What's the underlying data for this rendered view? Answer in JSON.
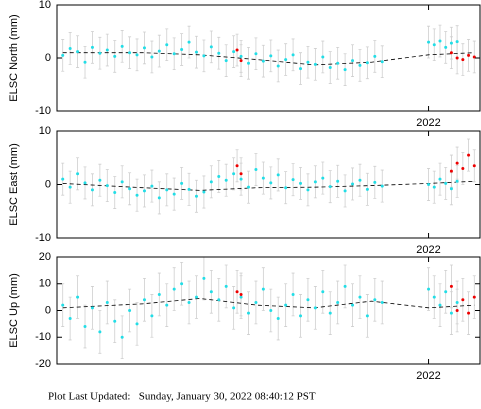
{
  "chart_data": [
    {
      "type": "scatter",
      "ylabel": "ELSC North (mm)",
      "ylim": [
        -10,
        10
      ],
      "yticks": [
        -10,
        0,
        10
      ],
      "xlim": [
        2021.35,
        2022.09
      ],
      "xticks": [
        2022
      ],
      "series": [
        {
          "color": "#22dde6",
          "error": 3,
          "x": [
            2021.36,
            2021.373,
            2021.386,
            2021.399,
            2021.412,
            2021.425,
            2021.438,
            2021.451,
            2021.464,
            2021.477,
            2021.49,
            2021.503,
            2021.516,
            2021.529,
            2021.542,
            2021.555,
            2021.568,
            2021.581,
            2021.594,
            2021.607,
            2021.62,
            2021.633,
            2021.646,
            2021.659,
            2021.672,
            2021.685,
            2021.698,
            2021.711,
            2021.724,
            2021.737,
            2021.75,
            2021.763,
            2021.776,
            2021.789,
            2021.802,
            2021.815,
            2021.828,
            2021.841,
            2021.854,
            2021.867,
            2021.88,
            2021.893,
            2021.906,
            2021.919
          ],
          "values": [
            0.5,
            1.8,
            1.2,
            -0.8,
            2.0,
            0.9,
            1.5,
            0.3,
            2.2,
            1.0,
            0.6,
            1.9,
            0.2,
            1.3,
            2.5,
            0.8,
            1.6,
            3.0,
            1.1,
            0.4,
            2.1,
            0.9,
            -0.5,
            1.2,
            0.3,
            -1.0,
            0.8,
            -0.6,
            0.4,
            -1.5,
            -0.3,
            0.6,
            -2.0,
            -0.8,
            -1.2,
            0.2,
            -1.8,
            -1.0,
            -2.2,
            -0.5,
            -1.4,
            -0.9,
            0.3,
            -0.7
          ]
        },
        {
          "color": "#22dde6",
          "error": 3,
          "x": [
            2022.0,
            2022.01,
            2022.02,
            2022.03,
            2022.04,
            2022.05
          ],
          "values": [
            3.0,
            2.5,
            3.2,
            2.0,
            2.8,
            3.1
          ]
        },
        {
          "color": "#ee0000",
          "error": 3,
          "x": [
            2021.665,
            2021.672
          ],
          "values": [
            1.5,
            -0.5
          ]
        },
        {
          "color": "#ee0000",
          "error": 3,
          "x": [
            2022.04,
            2022.05,
            2022.06,
            2022.07,
            2022.08
          ],
          "values": [
            1.0,
            0.0,
            -0.3,
            0.5,
            0.2
          ]
        },
        {
          "color": "#000000",
          "style": "dashed",
          "x": [
            2021.36,
            2021.5,
            2021.6,
            2021.7,
            2021.8,
            2021.9,
            2022.0,
            2022.08
          ],
          "values": [
            1.0,
            1.0,
            0.6,
            -0.3,
            -1.3,
            -0.8,
            0.6,
            1.0
          ]
        }
      ]
    },
    {
      "type": "scatter",
      "ylabel": "ELSC East (mm)",
      "ylim": [
        -10,
        10
      ],
      "yticks": [
        -10,
        0,
        10
      ],
      "xlim": [
        2021.35,
        2022.09
      ],
      "xticks": [
        2022
      ],
      "series": [
        {
          "color": "#22dde6",
          "error": 3,
          "x": [
            2021.36,
            2021.373,
            2021.386,
            2021.399,
            2021.412,
            2021.425,
            2021.438,
            2021.451,
            2021.464,
            2021.477,
            2021.49,
            2021.503,
            2021.516,
            2021.529,
            2021.542,
            2021.555,
            2021.568,
            2021.581,
            2021.594,
            2021.607,
            2021.62,
            2021.633,
            2021.646,
            2021.659,
            2021.672,
            2021.685,
            2021.698,
            2021.711,
            2021.724,
            2021.737,
            2021.75,
            2021.763,
            2021.776,
            2021.789,
            2021.802,
            2021.815,
            2021.828,
            2021.841,
            2021.854,
            2021.867,
            2021.88,
            2021.893,
            2021.906,
            2021.919
          ],
          "values": [
            1.0,
            -0.5,
            2.0,
            0.3,
            -1.0,
            0.8,
            -0.2,
            -1.5,
            0.5,
            -0.8,
            -2.0,
            -1.2,
            -0.3,
            -2.5,
            -1.0,
            -1.8,
            0.2,
            -0.9,
            -2.2,
            -1.4,
            0.5,
            1.5,
            0.8,
            2.0,
            1.0,
            -0.5,
            2.8,
            1.2,
            0.3,
            1.8,
            -0.6,
            0.9,
            0.2,
            -1.0,
            0.5,
            1.2,
            -0.4,
            0.6,
            -1.2,
            0.1,
            0.8,
            -0.9,
            0.4,
            -0.3
          ]
        },
        {
          "color": "#22dde6",
          "error": 3,
          "x": [
            2022.0,
            2022.01,
            2022.02,
            2022.03,
            2022.04,
            2022.05
          ],
          "values": [
            0.0,
            -0.5,
            1.0,
            0.2,
            -0.8,
            0.6
          ]
        },
        {
          "color": "#ee0000",
          "error": 3,
          "x": [
            2021.665,
            2021.672
          ],
          "values": [
            3.5,
            2.0
          ]
        },
        {
          "color": "#ee0000",
          "error": 3,
          "x": [
            2022.04,
            2022.05,
            2022.06,
            2022.07,
            2022.08
          ],
          "values": [
            2.5,
            4.0,
            3.0,
            5.5,
            3.5
          ]
        },
        {
          "color": "#000000",
          "style": "dashed",
          "x": [
            2021.36,
            2021.5,
            2021.6,
            2021.7,
            2021.8,
            2021.9,
            2022.0,
            2022.08
          ],
          "values": [
            0.2,
            -0.6,
            -1.1,
            -0.6,
            -0.5,
            -0.2,
            0.2,
            0.6
          ]
        }
      ]
    },
    {
      "type": "scatter",
      "ylabel": "ELSC Up (mm)",
      "ylim": [
        -20,
        20
      ],
      "yticks": [
        -20,
        -10,
        0,
        10,
        20
      ],
      "xlim": [
        2021.35,
        2022.09
      ],
      "xticks": [
        2022
      ],
      "series": [
        {
          "color": "#22dde6",
          "error": 8,
          "x": [
            2021.36,
            2021.373,
            2021.386,
            2021.399,
            2021.412,
            2021.425,
            2021.438,
            2021.451,
            2021.464,
            2021.477,
            2021.49,
            2021.503,
            2021.516,
            2021.529,
            2021.542,
            2021.555,
            2021.568,
            2021.581,
            2021.594,
            2021.607,
            2021.62,
            2021.633,
            2021.646,
            2021.659,
            2021.672,
            2021.685,
            2021.698,
            2021.711,
            2021.724,
            2021.737,
            2021.75,
            2021.763,
            2021.776,
            2021.789,
            2021.802,
            2021.815,
            2021.828,
            2021.841,
            2021.854,
            2021.867,
            2021.88,
            2021.893,
            2021.906,
            2021.919
          ],
          "values": [
            2,
            -3,
            5,
            -6,
            1,
            -8,
            3,
            -4,
            -10,
            0,
            -5,
            4,
            -2,
            6,
            2,
            8,
            10,
            3,
            5,
            12,
            7,
            4,
            9,
            1,
            5,
            -1,
            3,
            8,
            0,
            -3,
            2,
            6,
            -2,
            4,
            1,
            7,
            -1,
            3,
            9,
            2,
            5,
            -2,
            4,
            3
          ]
        },
        {
          "color": "#22dde6",
          "error": 8,
          "x": [
            2022.0,
            2022.01,
            2022.02,
            2022.03,
            2022.04,
            2022.05
          ],
          "values": [
            8,
            5,
            2,
            7,
            -1,
            3
          ]
        },
        {
          "color": "#ee0000",
          "error": 8,
          "x": [
            2021.665,
            2021.672
          ],
          "values": [
            7,
            6
          ]
        },
        {
          "color": "#ee0000",
          "error": 8,
          "x": [
            2022.04,
            2022.05,
            2022.06,
            2022.07,
            2022.08
          ],
          "values": [
            9,
            0,
            4,
            -1,
            5
          ]
        },
        {
          "color": "#000000",
          "style": "dashed",
          "x": [
            2021.36,
            2021.5,
            2021.6,
            2021.7,
            2021.8,
            2021.9,
            2022.0,
            2022.08
          ],
          "values": [
            1.0,
            2.5,
            4.5,
            2.0,
            1.0,
            3.5,
            1.0,
            2.0
          ]
        }
      ]
    }
  ],
  "footer": "Plot Last Updated:   Sunday, January 30, 2022 08:40:12 PST"
}
